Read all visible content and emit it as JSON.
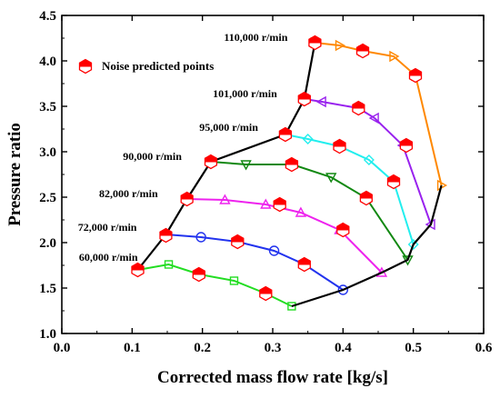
{
  "chart_data": {
    "type": "line",
    "xlabel": "Corrected mass flow rate [kg/s]",
    "ylabel": "Pressure ratio",
    "xlim": [
      0.0,
      0.6
    ],
    "ylim": [
      1.0,
      4.5
    ],
    "xticks": [
      "0.0",
      "0.1",
      "0.2",
      "0.3",
      "0.4",
      "0.5",
      "0.6"
    ],
    "yticks": [
      "1.0",
      "1.5",
      "2.0",
      "2.5",
      "3.0",
      "3.5",
      "4.0",
      "4.5"
    ],
    "grid": false,
    "legend": {
      "position": "top-left",
      "entries": [
        "Noise predicted points"
      ]
    },
    "speed_lines": [
      {
        "label": "60,000 r/min",
        "color": "#22dd22",
        "marker": "square",
        "x": [
          0.108,
          0.152,
          0.196,
          0.245,
          0.29,
          0.327
        ],
        "y": [
          1.7,
          1.76,
          1.65,
          1.58,
          1.44,
          1.3
        ]
      },
      {
        "label": "72,000 r/min",
        "color": "#2233ee",
        "marker": "circle",
        "x": [
          0.148,
          0.198,
          0.25,
          0.302,
          0.345,
          0.4
        ],
        "y": [
          2.09,
          2.06,
          2.01,
          1.91,
          1.76,
          1.48
        ]
      },
      {
        "label": "82,000 r/min",
        "color": "#ee22ee",
        "marker": "triangle-up",
        "x": [
          0.178,
          0.232,
          0.29,
          0.34,
          0.395,
          0.455
        ],
        "y": [
          2.48,
          2.47,
          2.42,
          2.33,
          2.14,
          1.67
        ]
      },
      {
        "label": "90,000 r/min",
        "color": "#118811",
        "marker": "triangle-down",
        "x": [
          0.212,
          0.262,
          0.328,
          0.383,
          0.433,
          0.492
        ],
        "y": [
          2.89,
          2.86,
          2.86,
          2.72,
          2.49,
          1.81
        ]
      },
      {
        "label": "95,000 r/min",
        "color": "#22eeee",
        "marker": "diamond",
        "x": [
          0.318,
          0.35,
          0.395,
          0.437,
          0.472,
          0.5
        ],
        "y": [
          3.19,
          3.14,
          3.06,
          2.91,
          2.67,
          1.98
        ]
      },
      {
        "label": "101,000 r/min",
        "color": "#9922ee",
        "marker": "triangle-left",
        "x": [
          0.345,
          0.37,
          0.422,
          0.445,
          0.485,
          0.525
        ],
        "y": [
          3.58,
          3.55,
          3.48,
          3.37,
          3.07,
          2.2
        ]
      },
      {
        "label": "110,000 r/min",
        "color": "#ff8800",
        "marker": "triangle-right",
        "x": [
          0.36,
          0.395,
          0.428,
          0.472,
          0.503,
          0.54
        ],
        "y": [
          4.2,
          4.17,
          4.11,
          4.05,
          3.84,
          2.63
        ]
      }
    ],
    "surge_line": {
      "color": "#000000",
      "x": [
        0.108,
        0.148,
        0.178,
        0.212,
        0.318,
        0.345,
        0.36
      ],
      "y": [
        1.7,
        2.09,
        2.48,
        2.89,
        3.19,
        3.58,
        4.2
      ]
    },
    "choke_line": {
      "color": "#000000",
      "x": [
        0.327,
        0.4,
        0.455,
        0.492,
        0.5,
        0.525,
        0.54
      ],
      "y": [
        1.3,
        1.48,
        1.67,
        1.81,
        1.98,
        2.2,
        2.63
      ]
    },
    "noise_points": {
      "name": "Noise predicted points",
      "x": [
        0.108,
        0.148,
        0.195,
        0.29,
        0.345,
        0.178,
        0.25,
        0.31,
        0.4,
        0.212,
        0.327,
        0.433,
        0.318,
        0.395,
        0.472,
        0.345,
        0.422,
        0.49,
        0.36,
        0.428,
        0.503
      ],
      "y": [
        1.7,
        2.08,
        1.65,
        1.44,
        1.76,
        2.48,
        2.01,
        2.42,
        2.14,
        2.89,
        2.86,
        2.49,
        3.19,
        3.06,
        2.67,
        3.58,
        3.48,
        3.07,
        4.2,
        4.11,
        3.84
      ]
    }
  }
}
